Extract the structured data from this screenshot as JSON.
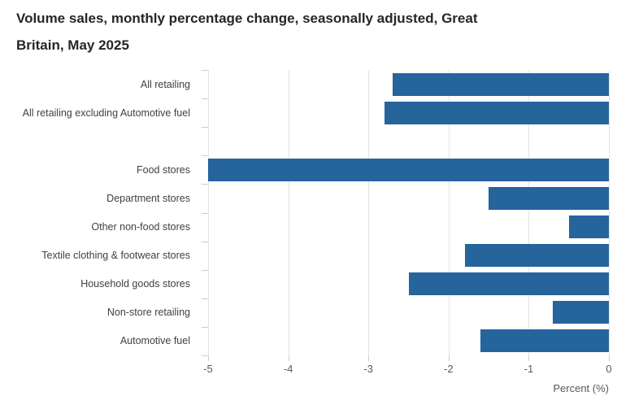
{
  "title": {
    "line1": "Volume sales, monthly percentage change, seasonally adjusted, Great",
    "line2": "Britain, May 2025"
  },
  "axis": {
    "xlabel": "Percent (%)"
  },
  "colors": {
    "bar_color": "#26649C",
    "grid_color": "#e4e4e4",
    "tick_color": "#cccccc",
    "title_text": "#262626",
    "label_text": "#414042",
    "tick_text": "#595959",
    "background": "#ffffff"
  },
  "chart_data": {
    "type": "bar",
    "orientation": "horizontal",
    "title": "Volume sales, monthly percentage change, seasonally adjusted, Great Britain, May 2025",
    "categories": [
      "All retailing",
      "All retailing excluding Automotive fuel",
      "Food stores",
      "Department stores",
      "Other non-food stores",
      "Textile clothing & footwear stores",
      "Household goods stores",
      "Non-store retailing",
      "Automotive fuel"
    ],
    "values": [
      -2.7,
      -2.8,
      -5.0,
      -1.5,
      -0.5,
      -1.8,
      -2.5,
      -0.7,
      -1.6
    ],
    "xlabel": "Percent (%)",
    "ylabel": "",
    "xlim": [
      -5,
      0
    ],
    "xticks": [
      -5,
      -4,
      -3,
      -2,
      -1,
      0
    ],
    "grid": true,
    "legend": false,
    "gap_after_index": 1,
    "bar_color": "#26649C"
  }
}
